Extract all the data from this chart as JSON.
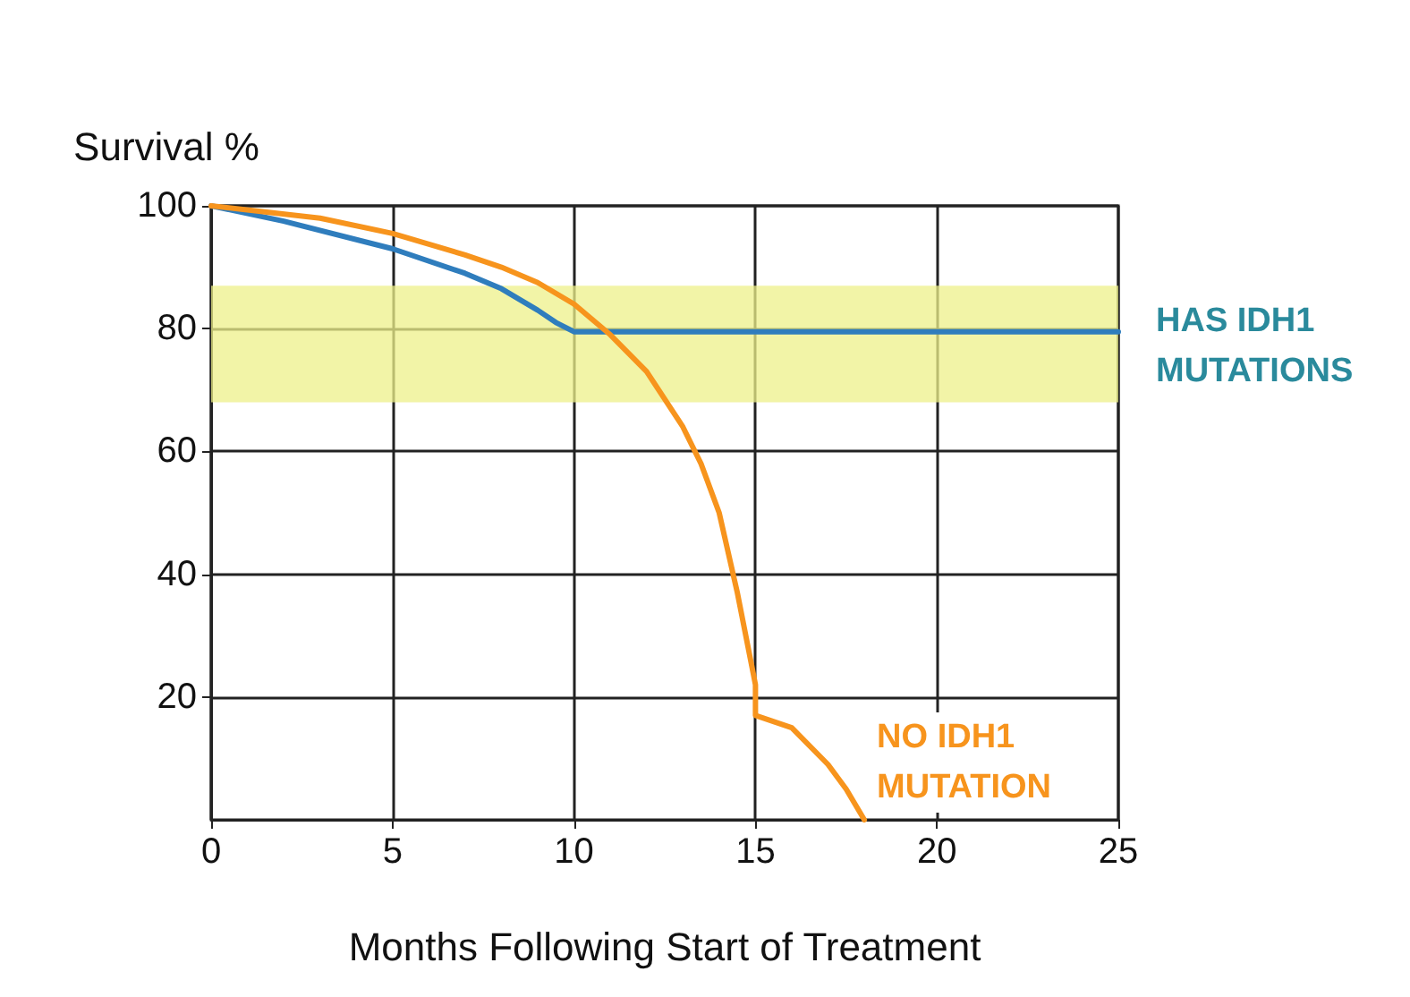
{
  "chart_data": {
    "type": "line",
    "xlabel": "Months Following Start of Treatment",
    "ylabel": "Survival %",
    "xlim": [
      0,
      25
    ],
    "ylim": [
      0,
      100
    ],
    "xticks": [
      0,
      5,
      10,
      15,
      20,
      25
    ],
    "yticks": [
      20,
      40,
      60,
      80,
      100
    ],
    "grid": true,
    "legend": false,
    "marker": "none",
    "line_style": "solid",
    "bands": [
      {
        "axis": "y",
        "from": 68,
        "to": 87,
        "color": "#eef08a"
      }
    ],
    "series": [
      {
        "name": "HAS IDH1 MUTATIONS",
        "color": "#2f7dbd",
        "x": [
          0,
          2,
          5,
          7,
          8,
          9,
          9.5,
          10,
          12,
          15,
          20,
          25
        ],
        "values": [
          100,
          97.5,
          93,
          89,
          86.5,
          83,
          81,
          79.5,
          79.5,
          79.5,
          79.5,
          79.5
        ]
      },
      {
        "name": "NO IDH1 MUTATION",
        "color": "#f7941d",
        "x": [
          0,
          3,
          5,
          7,
          8,
          9,
          10,
          11,
          12,
          13,
          13.5,
          14,
          14.5,
          15,
          15,
          16,
          17,
          17.5,
          18
        ],
        "values": [
          100,
          98,
          95.5,
          92,
          90,
          87.5,
          84,
          79,
          73,
          64,
          58,
          50,
          37,
          22,
          17,
          15,
          9,
          5,
          0
        ]
      }
    ]
  }
}
